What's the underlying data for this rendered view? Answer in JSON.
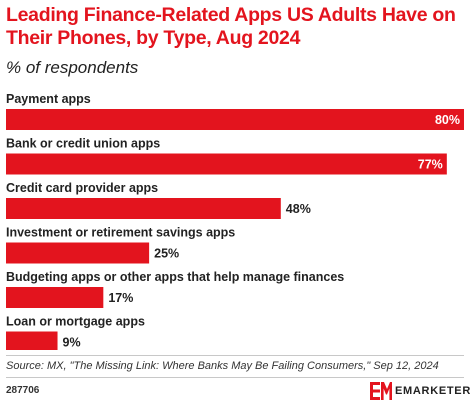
{
  "title": "Leading Finance-Related Apps US Adults Have on Their Phones, by Type, Aug 2024",
  "subtitle": "% of respondents",
  "source": "Source: MX, \"The Missing Link: Where Banks May Be Failing Consumers,\" Sep 12, 2024",
  "chart_id": "287706",
  "brand": {
    "name": "EMARKETER",
    "logo_icon": "em-logo-icon"
  },
  "colors": {
    "accent": "#e3141e",
    "text": "#222222",
    "bar_label_inside": "#ffffff"
  },
  "chart_data": {
    "type": "bar",
    "orientation": "horizontal",
    "categories": [
      "Payment apps",
      "Bank or credit union apps",
      "Credit card provider apps",
      "Investment or retirement savings apps",
      "Budgeting apps or other apps that help manage finances",
      "Loan or mortgage apps"
    ],
    "values": [
      80,
      77,
      48,
      25,
      17,
      9
    ],
    "value_labels": [
      "80%",
      "77%",
      "48%",
      "25%",
      "17%",
      "9%"
    ],
    "unit": "%",
    "xlim": [
      0,
      80
    ],
    "grid": false,
    "legend": "none"
  }
}
